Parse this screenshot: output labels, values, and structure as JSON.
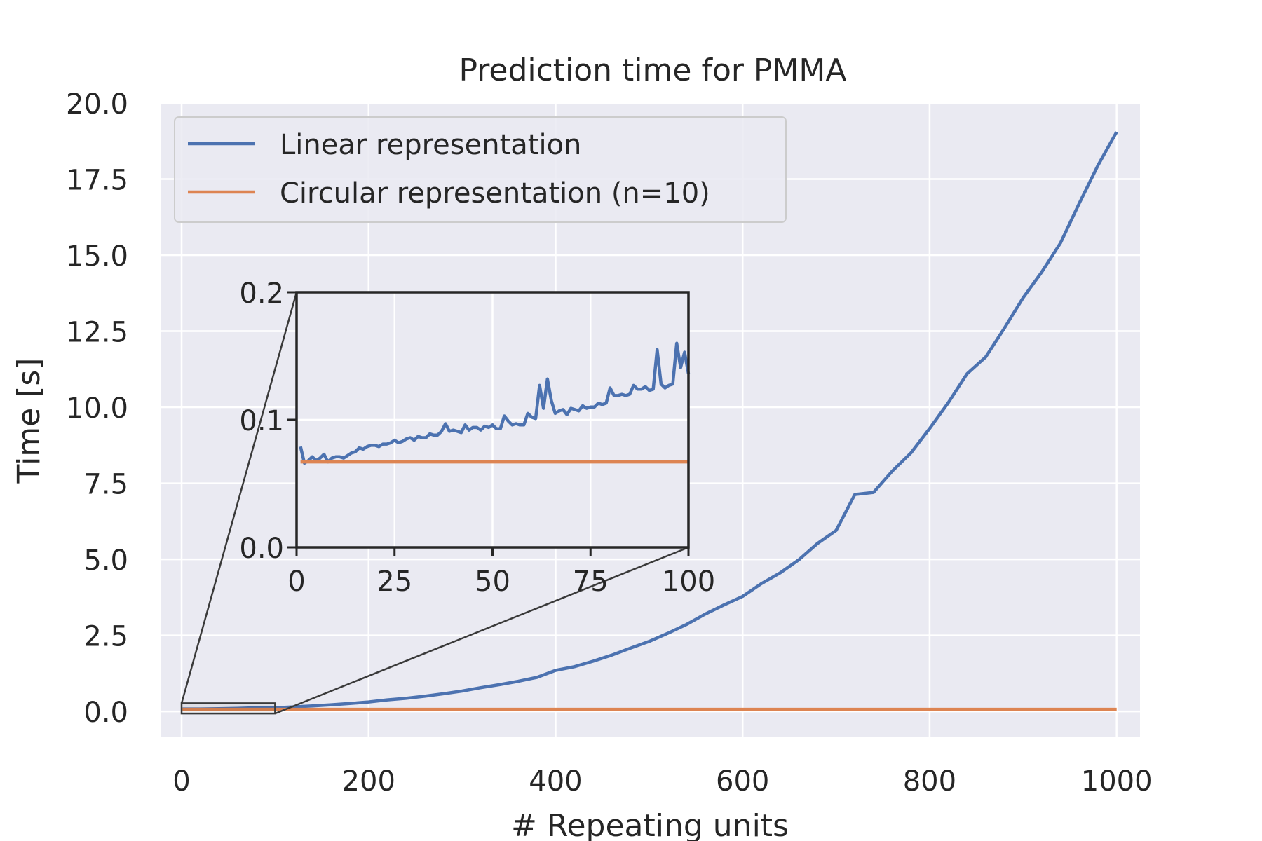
{
  "chart_data": {
    "type": "line",
    "title": "Prediction time for PMMA",
    "xlabel": "# Repeating units",
    "ylabel": "Time [s]",
    "xlim": [
      -22.5,
      1025
    ],
    "ylim": [
      -0.85,
      20.0
    ],
    "xticks": [
      "0",
      "200",
      "400",
      "600",
      "800",
      "1000"
    ],
    "xtick_values": [
      0,
      200,
      400,
      600,
      800,
      1000
    ],
    "yticks": [
      "0.0",
      "2.5",
      "5.0",
      "7.5",
      "10.0",
      "12.5",
      "15.0",
      "17.5",
      "20.0"
    ],
    "ytick_values": [
      0,
      2.5,
      5,
      7.5,
      10,
      12.5,
      15,
      17.5,
      20
    ],
    "grid": true,
    "legend_position": "upper-left",
    "colors": {
      "background": "#eaeaf2",
      "grid": "#ffffff",
      "linear": "#4c72b0",
      "circular": "#dd8452",
      "frame": "#262626"
    },
    "series": [
      {
        "name": "Linear representation",
        "x": [
          1,
          20,
          40,
          60,
          80,
          100,
          120,
          140,
          160,
          180,
          200,
          220,
          240,
          260,
          280,
          300,
          320,
          340,
          360,
          380,
          400,
          420,
          440,
          460,
          480,
          500,
          520,
          540,
          560,
          580,
          600,
          620,
          640,
          660,
          680,
          700,
          720,
          740,
          760,
          780,
          800,
          820,
          840,
          860,
          880,
          900,
          920,
          940,
          960,
          980,
          1000
        ],
        "y": [
          0.08,
          0.08,
          0.09,
          0.1,
          0.12,
          0.12,
          0.15,
          0.18,
          0.22,
          0.26,
          0.31,
          0.38,
          0.43,
          0.5,
          0.58,
          0.67,
          0.78,
          0.88,
          0.99,
          1.12,
          1.35,
          1.47,
          1.65,
          1.85,
          2.08,
          2.3,
          2.57,
          2.86,
          3.2,
          3.5,
          3.78,
          4.2,
          4.55,
          4.98,
          5.52,
          5.95,
          7.13,
          7.2,
          7.9,
          8.5,
          9.3,
          10.15,
          11.1,
          11.65,
          12.6,
          13.6,
          14.45,
          15.4,
          16.7,
          17.95,
          19.05
        ]
      },
      {
        "name": "Circular representation (n=10)",
        "x": [
          1,
          1000
        ],
        "y": [
          0.07,
          0.07
        ]
      }
    ],
    "inset": {
      "xlim": [
        0,
        100
      ],
      "ylim": [
        0.0,
        0.2
      ],
      "xticks": [
        "0",
        "25",
        "50",
        "75",
        "100"
      ],
      "xtick_values": [
        0,
        25,
        50,
        75,
        100
      ],
      "yticks": [
        "0.0",
        "0.1",
        "0.2"
      ],
      "ytick_values": [
        0,
        0.1,
        0.2
      ],
      "zoom_region": {
        "x": [
          0,
          100
        ],
        "y": [
          0,
          0.2
        ]
      },
      "series": [
        {
          "name": "Linear representation",
          "x": [
            1,
            2,
            3,
            4,
            5,
            6,
            7,
            8,
            9,
            10,
            11,
            12,
            13,
            14,
            15,
            16,
            17,
            18,
            19,
            20,
            21,
            22,
            23,
            24,
            25,
            26,
            27,
            28,
            29,
            30,
            31,
            32,
            33,
            34,
            35,
            36,
            37,
            38,
            39,
            40,
            41,
            42,
            43,
            44,
            45,
            46,
            47,
            48,
            49,
            50,
            51,
            52,
            53,
            54,
            55,
            56,
            57,
            58,
            59,
            60,
            61,
            62,
            63,
            64,
            65,
            66,
            67,
            68,
            69,
            70,
            71,
            72,
            73,
            74,
            75,
            76,
            77,
            78,
            79,
            80,
            81,
            82,
            83,
            84,
            85,
            86,
            87,
            88,
            89,
            90,
            91,
            92,
            93,
            94,
            95,
            96,
            97,
            98,
            99,
            100
          ],
          "y": [
            0.079,
            0.066,
            0.068,
            0.071,
            0.068,
            0.07,
            0.073,
            0.067,
            0.07,
            0.071,
            0.071,
            0.07,
            0.072,
            0.074,
            0.075,
            0.078,
            0.077,
            0.079,
            0.08,
            0.08,
            0.079,
            0.081,
            0.081,
            0.082,
            0.084,
            0.082,
            0.083,
            0.085,
            0.086,
            0.084,
            0.087,
            0.086,
            0.086,
            0.089,
            0.088,
            0.088,
            0.091,
            0.097,
            0.091,
            0.092,
            0.091,
            0.09,
            0.096,
            0.092,
            0.094,
            0.094,
            0.092,
            0.095,
            0.094,
            0.096,
            0.093,
            0.093,
            0.103,
            0.099,
            0.096,
            0.097,
            0.096,
            0.096,
            0.105,
            0.102,
            0.101,
            0.127,
            0.109,
            0.132,
            0.115,
            0.105,
            0.107,
            0.108,
            0.104,
            0.109,
            0.108,
            0.107,
            0.111,
            0.109,
            0.11,
            0.11,
            0.113,
            0.112,
            0.113,
            0.125,
            0.119,
            0.119,
            0.12,
            0.119,
            0.12,
            0.127,
            0.124,
            0.124,
            0.126,
            0.123,
            0.124,
            0.155,
            0.128,
            0.125,
            0.127,
            0.128,
            0.16,
            0.141,
            0.153,
            0.136
          ]
        },
        {
          "name": "Circular representation (n=10)",
          "x": [
            1,
            100
          ],
          "y": [
            0.067,
            0.067
          ]
        }
      ]
    }
  }
}
